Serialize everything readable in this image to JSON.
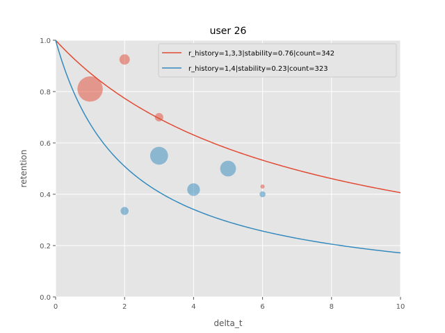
{
  "chart_data": {
    "type": "scatter",
    "title": "user 26",
    "xlabel": "delta_t",
    "ylabel": "retention",
    "xlim": [
      0,
      10
    ],
    "ylim": [
      0,
      1
    ],
    "xticks": [
      0,
      2,
      4,
      6,
      8,
      10
    ],
    "yticks": [
      0.0,
      0.2,
      0.4,
      0.6,
      0.8,
      1.0
    ],
    "xtick_labels": [
      "0",
      "2",
      "4",
      "6",
      "8",
      "10"
    ],
    "ytick_labels": [
      "0.0",
      "0.2",
      "0.4",
      "0.6",
      "0.8",
      "1.0"
    ],
    "grid": true,
    "legend_position": "top-right",
    "curves": [
      {
        "name": "r_history=1,3,3|stability=0.76|count=342",
        "color": "#E24A33",
        "model": "power_forgetting",
        "stability": 0.76,
        "x_range": [
          0,
          10
        ]
      },
      {
        "name": "r_history=1,4|stability=0.23|count=323",
        "color": "#348ABD",
        "model": "power_forgetting",
        "stability": 0.23,
        "x_range": [
          0,
          10
        ]
      }
    ],
    "series": [
      {
        "color": "#E24A33",
        "points": [
          {
            "x": 1,
            "y": 0.81,
            "weight": 18
          },
          {
            "x": 2,
            "y": 0.925,
            "weight": 3
          },
          {
            "x": 3,
            "y": 0.7,
            "weight": 2
          },
          {
            "x": 6,
            "y": 0.43,
            "weight": 0.5
          }
        ]
      },
      {
        "color": "#348ABD",
        "points": [
          {
            "x": 2,
            "y": 0.335,
            "weight": 1.8
          },
          {
            "x": 3,
            "y": 0.55,
            "weight": 9
          },
          {
            "x": 4,
            "y": 0.418,
            "weight": 4.5
          },
          {
            "x": 5,
            "y": 0.5,
            "weight": 7
          },
          {
            "x": 6,
            "y": 0.4,
            "weight": 1
          }
        ]
      }
    ]
  }
}
